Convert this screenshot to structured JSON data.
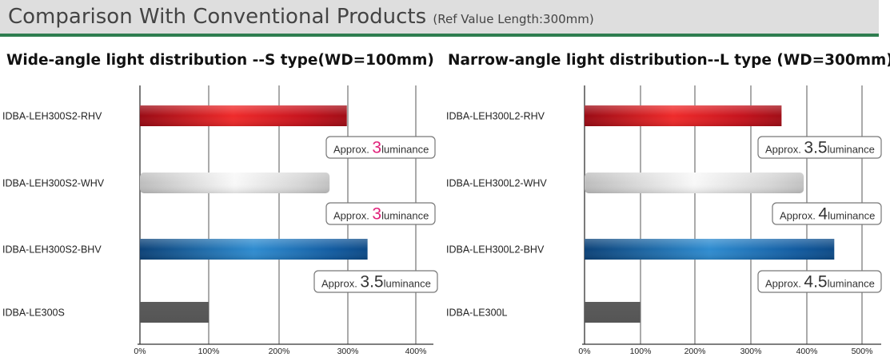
{
  "header": {
    "title": "Comparison With Conventional Products",
    "subtitle": "(Ref Value  Length:300mm)"
  },
  "chart_data": [
    {
      "type": "bar",
      "orientation": "horizontal",
      "title": "Wide-angle light distribution --S type(WD=100mm)",
      "categories": [
        "IDBA-LEH300S2-RHV",
        "IDBA-LEH300S2-WHV",
        "IDBA-LEH300S2-BHV",
        "IDBA-LE300S"
      ],
      "values": [
        300,
        275,
        330,
        100
      ],
      "bar_colors": [
        "red",
        "white",
        "blue",
        "gray"
      ],
      "annotations": [
        {
          "prefix": "Approx. ",
          "value": "3",
          "suffix": "luminance",
          "value_color": "#e0207a"
        },
        {
          "prefix": "Approx. ",
          "value": "3",
          "suffix": "luminance",
          "value_color": "#e0207a"
        },
        {
          "prefix": "Approx. ",
          "value": "3.5",
          "suffix": "luminance",
          "value_color": "#333333"
        },
        null
      ],
      "xticks": [
        "0%",
        "100%",
        "200%",
        "300%",
        "400%"
      ],
      "xlim": [
        0,
        400
      ],
      "grid": true
    },
    {
      "type": "bar",
      "orientation": "horizontal",
      "title": "Narrow-angle light distribution--L type (WD=300mm)",
      "categories": [
        "IDBA-LEH300L2-RHV",
        "IDBA-LEH300L2-WHV",
        "IDBA-LEH300L2-BHV",
        "IDBA-LE300L"
      ],
      "values": [
        355,
        395,
        450,
        100
      ],
      "bar_colors": [
        "red",
        "white",
        "blue",
        "gray"
      ],
      "annotations": [
        {
          "prefix": "Approx. ",
          "value": "3.5",
          "suffix": "luminance",
          "value_color": "#333333"
        },
        {
          "prefix": "Approx. ",
          "value": "4",
          "suffix": "luminance",
          "value_color": "#333333"
        },
        {
          "prefix": "Approx. ",
          "value": "4.5",
          "suffix": "luminance",
          "value_color": "#333333"
        },
        null
      ],
      "xticks": [
        "0%",
        "100%",
        "200%",
        "300%",
        "400%",
        "500%"
      ],
      "xlim": [
        0,
        500
      ],
      "grid": true
    }
  ]
}
